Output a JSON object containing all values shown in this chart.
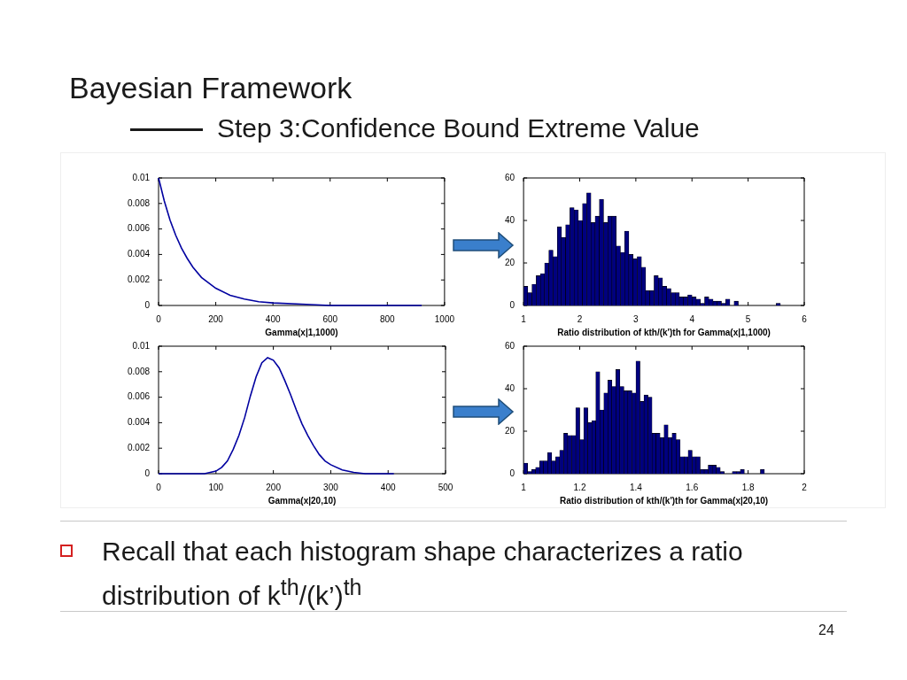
{
  "chart_data": [
    {
      "type": "line",
      "title": "Bayesian Framework",
      "subtitle": "Step 3:Confidence Bound Extreme Value",
      "annotations": [
        "Recall that each histogram shape characterizes a ratio distribution of k$^{th}$/(k’)$^{th}$",
        "24"
      ],
      "xlabel": "Gamma(x|1,1000)",
      "color": "#0000a0",
      "x": [
        0,
        20,
        40,
        60,
        80,
        100,
        120,
        150,
        200,
        250,
        300,
        350,
        400,
        500,
        600,
        700,
        800,
        920
      ],
      "values": [
        0.01,
        0.0082,
        0.0067,
        0.0055,
        0.0045,
        0.0037,
        0.003,
        0.0022,
        0.00135,
        0.0008,
        0.0005,
        0.0003,
        0.0002,
        0.0001,
        0,
        0,
        0,
        0
      ],
      "xlim": [
        0,
        1000
      ],
      "xticks": [
        0,
        200,
        400,
        600,
        800,
        1000
      ],
      "ylim": [
        0,
        0.01
      ],
      "yticks": [
        0,
        0.002,
        0.004,
        0.006,
        0.008,
        0.01
      ]
    },
    {
      "type": "histogram",
      "xlabel": "Ratio distribution of kth/(k')th for Gamma(x|1,1000)",
      "color": "#00007f",
      "bins": [
        1,
        1.075,
        1.15,
        1.225,
        1.3,
        1.375,
        1.45,
        1.525,
        1.6,
        1.675,
        1.75,
        1.825,
        1.9,
        1.975,
        2.05,
        2.125,
        2.2,
        2.275,
        2.35,
        2.425,
        2.5,
        2.575,
        2.65,
        2.725,
        2.8,
        2.875,
        2.95,
        3.025,
        3.1,
        3.175,
        3.25,
        3.325,
        3.4,
        3.475,
        3.55,
        3.625,
        3.7,
        3.775,
        3.85,
        3.925,
        4,
        4.075,
        4.15,
        4.225,
        4.3,
        4.375,
        4.45,
        4.525,
        4.6,
        4.675,
        4.75,
        4.825,
        4.9,
        4.975,
        5.05,
        5.125,
        5.2,
        5.275,
        5.35,
        5.425,
        5.5,
        5.575
      ],
      "values": [
        9,
        6,
        10,
        14,
        15,
        20,
        26,
        23,
        37,
        32,
        38,
        46,
        45,
        40,
        48,
        53,
        39,
        42,
        50,
        39,
        42,
        42,
        28,
        25,
        35,
        24,
        22,
        23,
        18,
        7,
        7,
        14,
        13,
        9,
        8,
        6,
        6,
        4,
        4,
        5,
        4,
        3,
        1,
        4,
        3,
        2,
        2,
        1,
        3,
        0,
        2,
        0,
        0,
        0,
        0,
        0,
        0,
        0,
        0,
        0,
        1
      ],
      "xlim": [
        1,
        6
      ],
      "xticks": [
        1,
        2,
        3,
        4,
        5,
        6
      ],
      "ylim": [
        0,
        60
      ],
      "yticks": [
        0,
        20,
        40,
        60
      ]
    },
    {
      "type": "line",
      "xlabel": "Gamma(x|20,10)",
      "color": "#0000a0",
      "x": [
        0,
        80,
        100,
        110,
        120,
        130,
        140,
        150,
        160,
        170,
        180,
        190,
        200,
        210,
        220,
        230,
        240,
        250,
        260,
        270,
        280,
        290,
        300,
        320,
        340,
        360,
        410
      ],
      "values": [
        0,
        0,
        0.0002,
        0.0005,
        0.001,
        0.0019,
        0.003,
        0.0044,
        0.0061,
        0.0076,
        0.0087,
        0.0091,
        0.0089,
        0.0083,
        0.0073,
        0.0062,
        0.005,
        0.0039,
        0.003,
        0.0022,
        0.0015,
        0.001,
        0.0007,
        0.0003,
        0.0001,
        0,
        0
      ],
      "xlim": [
        0,
        500
      ],
      "xticks": [
        0,
        100,
        200,
        300,
        400,
        500
      ],
      "ylim": [
        0,
        0.01
      ],
      "yticks": [
        0,
        0.002,
        0.004,
        0.006,
        0.008,
        0.01
      ]
    },
    {
      "type": "histogram",
      "xlabel": "Ratio distribution of kth/(k')th for Gamma(x|20,10)",
      "color": "#00007f",
      "bins": [
        1,
        1.0143,
        1.0286,
        1.0429,
        1.0572,
        1.0715,
        1.0858,
        1.1001,
        1.1144,
        1.1287,
        1.143,
        1.1573,
        1.1716,
        1.1859,
        1.2002,
        1.2145,
        1.2288,
        1.2431,
        1.2574,
        1.2717,
        1.286,
        1.3003,
        1.3146,
        1.3289,
        1.3432,
        1.3575,
        1.3718,
        1.3861,
        1.4004,
        1.4147,
        1.429,
        1.4433,
        1.4576,
        1.4719,
        1.4862,
        1.5005,
        1.5148,
        1.5291,
        1.5434,
        1.5577,
        1.572,
        1.5863,
        1.6006,
        1.6149,
        1.6292,
        1.6435,
        1.6578,
        1.6721,
        1.6864,
        1.7007,
        1.715,
        1.7293,
        1.7436,
        1.7579,
        1.7722,
        1.7865,
        1.8008,
        1.8151,
        1.8294,
        1.8437,
        1.858
      ],
      "values": [
        5,
        1,
        2,
        3,
        6,
        6,
        10,
        6,
        8,
        11,
        19,
        18,
        18,
        31,
        16,
        31,
        24,
        25,
        48,
        30,
        38,
        44,
        41,
        49,
        41,
        39,
        39,
        38,
        53,
        34,
        37,
        36,
        19,
        19,
        17,
        23,
        17,
        19,
        16,
        8,
        8,
        11,
        8,
        8,
        2,
        2,
        4,
        4,
        3,
        1,
        0,
        0,
        1,
        1,
        2,
        0,
        0,
        0,
        0,
        2
      ],
      "xlim": [
        1,
        2
      ],
      "xticks": [
        1,
        1.2,
        1.4,
        1.6,
        1.8,
        2
      ],
      "ylim": [
        0,
        60
      ],
      "yticks": [
        0,
        20,
        40,
        60
      ]
    }
  ]
}
